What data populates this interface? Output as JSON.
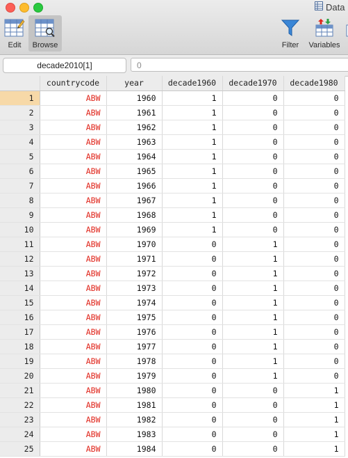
{
  "window": {
    "title": "Data"
  },
  "toolbar": {
    "edit_label": "Edit",
    "browse_label": "Browse",
    "filter_label": "Filter",
    "variables_label": "Variables"
  },
  "cmdbar": {
    "cell_ref": "decade2010[1]",
    "value": "0"
  },
  "grid": {
    "columns": [
      "countrycode",
      "year",
      "decade1960",
      "decade1970",
      "decade1980"
    ],
    "selected_row": 1,
    "rows": [
      {
        "n": "1",
        "countrycode": "ABW",
        "year": "1960",
        "decade1960": "1",
        "decade1970": "0",
        "decade1980": "0"
      },
      {
        "n": "2",
        "countrycode": "ABW",
        "year": "1961",
        "decade1960": "1",
        "decade1970": "0",
        "decade1980": "0"
      },
      {
        "n": "3",
        "countrycode": "ABW",
        "year": "1962",
        "decade1960": "1",
        "decade1970": "0",
        "decade1980": "0"
      },
      {
        "n": "4",
        "countrycode": "ABW",
        "year": "1963",
        "decade1960": "1",
        "decade1970": "0",
        "decade1980": "0"
      },
      {
        "n": "5",
        "countrycode": "ABW",
        "year": "1964",
        "decade1960": "1",
        "decade1970": "0",
        "decade1980": "0"
      },
      {
        "n": "6",
        "countrycode": "ABW",
        "year": "1965",
        "decade1960": "1",
        "decade1970": "0",
        "decade1980": "0"
      },
      {
        "n": "7",
        "countrycode": "ABW",
        "year": "1966",
        "decade1960": "1",
        "decade1970": "0",
        "decade1980": "0"
      },
      {
        "n": "8",
        "countrycode": "ABW",
        "year": "1967",
        "decade1960": "1",
        "decade1970": "0",
        "decade1980": "0"
      },
      {
        "n": "9",
        "countrycode": "ABW",
        "year": "1968",
        "decade1960": "1",
        "decade1970": "0",
        "decade1980": "0"
      },
      {
        "n": "10",
        "countrycode": "ABW",
        "year": "1969",
        "decade1960": "1",
        "decade1970": "0",
        "decade1980": "0"
      },
      {
        "n": "11",
        "countrycode": "ABW",
        "year": "1970",
        "decade1960": "0",
        "decade1970": "1",
        "decade1980": "0"
      },
      {
        "n": "12",
        "countrycode": "ABW",
        "year": "1971",
        "decade1960": "0",
        "decade1970": "1",
        "decade1980": "0"
      },
      {
        "n": "13",
        "countrycode": "ABW",
        "year": "1972",
        "decade1960": "0",
        "decade1970": "1",
        "decade1980": "0"
      },
      {
        "n": "14",
        "countrycode": "ABW",
        "year": "1973",
        "decade1960": "0",
        "decade1970": "1",
        "decade1980": "0"
      },
      {
        "n": "15",
        "countrycode": "ABW",
        "year": "1974",
        "decade1960": "0",
        "decade1970": "1",
        "decade1980": "0"
      },
      {
        "n": "16",
        "countrycode": "ABW",
        "year": "1975",
        "decade1960": "0",
        "decade1970": "1",
        "decade1980": "0"
      },
      {
        "n": "17",
        "countrycode": "ABW",
        "year": "1976",
        "decade1960": "0",
        "decade1970": "1",
        "decade1980": "0"
      },
      {
        "n": "18",
        "countrycode": "ABW",
        "year": "1977",
        "decade1960": "0",
        "decade1970": "1",
        "decade1980": "0"
      },
      {
        "n": "19",
        "countrycode": "ABW",
        "year": "1978",
        "decade1960": "0",
        "decade1970": "1",
        "decade1980": "0"
      },
      {
        "n": "20",
        "countrycode": "ABW",
        "year": "1979",
        "decade1960": "0",
        "decade1970": "1",
        "decade1980": "0"
      },
      {
        "n": "21",
        "countrycode": "ABW",
        "year": "1980",
        "decade1960": "0",
        "decade1970": "0",
        "decade1980": "1"
      },
      {
        "n": "22",
        "countrycode": "ABW",
        "year": "1981",
        "decade1960": "0",
        "decade1970": "0",
        "decade1980": "1"
      },
      {
        "n": "23",
        "countrycode": "ABW",
        "year": "1982",
        "decade1960": "0",
        "decade1970": "0",
        "decade1980": "1"
      },
      {
        "n": "24",
        "countrycode": "ABW",
        "year": "1983",
        "decade1960": "0",
        "decade1970": "0",
        "decade1980": "1"
      },
      {
        "n": "25",
        "countrycode": "ABW",
        "year": "1984",
        "decade1960": "0",
        "decade1970": "0",
        "decade1980": "1"
      }
    ]
  },
  "colors": {
    "string_value": "#e0251b",
    "selected_row_header": "#f7d9a8"
  },
  "icons": {
    "edit": "edit-grid-icon",
    "browse": "browse-grid-icon",
    "filter": "funnel-icon",
    "variables": "variables-icon",
    "window": "data-editor-icon"
  }
}
